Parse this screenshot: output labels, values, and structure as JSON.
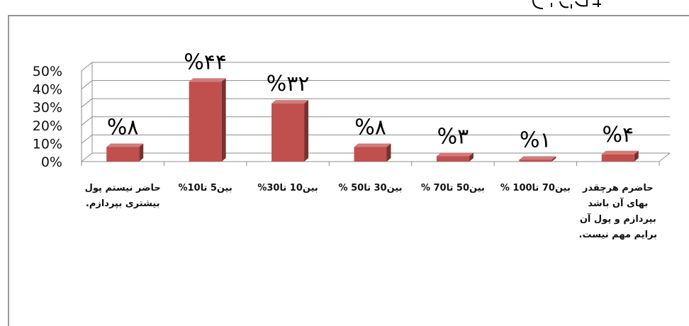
{
  "chart_data": {
    "type": "bar",
    "title": "",
    "xlabel": "",
    "ylabel": "",
    "ylim": [
      0,
      50
    ],
    "y_ticks": [
      "0%",
      "10%",
      "20%",
      "30%",
      "40%",
      "50%"
    ],
    "grid": true,
    "legend": "none",
    "bar_color": "#c0504d",
    "categories": [
      "حاضر نیستم پول بیشتری بپردازم.",
      "بین5 تا10%",
      "بین10 تا30%",
      "بین30 تا50 %",
      "بین50 تا70 %",
      "بین70 تا100 %",
      "حاضرم هرچقدر بهای آن باشد بپردازم و پول آن برایم مهم نیست."
    ],
    "values": [
      8,
      44,
      32,
      8,
      3,
      1,
      4
    ],
    "data_labels": [
      "%۸",
      "%۴۴",
      "%۳۲",
      "%۸",
      "%۳",
      "%۱",
      "%۴"
    ]
  }
}
